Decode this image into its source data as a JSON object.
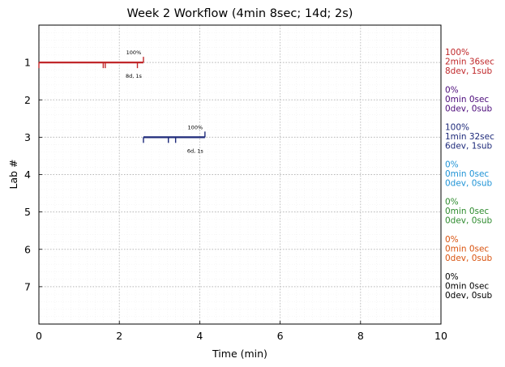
{
  "chart_data": {
    "type": "timeline",
    "title": "Week 2 Workflow (4min 8sec; 14d; 2s)",
    "xlabel": "Time (min)",
    "ylabel": "Lab #",
    "xlim": [
      0,
      10
    ],
    "ylim": [
      8,
      0
    ],
    "xticks": [
      0,
      2,
      4,
      6,
      8,
      10
    ],
    "yticks": [
      1,
      2,
      3,
      4,
      5,
      6,
      7
    ],
    "grid": true,
    "labs": [
      {
        "lab": 1,
        "color": "#c0282a",
        "segments": [
          [
            0,
            2.6
          ]
        ],
        "dev_marks": [
          0,
          1.6,
          1.65,
          2.45
        ],
        "end_mark": 2.6,
        "pct_label": "100%",
        "count_label": "8d, 1s",
        "side_lines": [
          "100%",
          "2min 36sec",
          "8dev, 1sub"
        ]
      },
      {
        "lab": 2,
        "color": "#4b0a7a",
        "segments": [],
        "dev_marks": [],
        "end_mark": null,
        "pct_label": "",
        "count_label": "",
        "side_lines": [
          "0%",
          "0min 0sec",
          "0dev, 0sub"
        ]
      },
      {
        "lab": 3,
        "color": "#1e2a7a",
        "segments": [
          [
            2.6,
            4.13
          ]
        ],
        "dev_marks": [
          2.6,
          3.22,
          3.4
        ],
        "end_mark": 4.13,
        "pct_label": "100%",
        "count_label": "6d, 1s",
        "side_lines": [
          "100%",
          "1min 32sec",
          "6dev, 1sub"
        ]
      },
      {
        "lab": 4,
        "color": "#1f93d6",
        "segments": [],
        "dev_marks": [],
        "end_mark": null,
        "pct_label": "",
        "count_label": "",
        "side_lines": [
          "0%",
          "0min 0sec",
          "0dev, 0sub"
        ]
      },
      {
        "lab": 5,
        "color": "#2e8b2e",
        "segments": [],
        "dev_marks": [],
        "end_mark": null,
        "pct_label": "",
        "count_label": "",
        "side_lines": [
          "0%",
          "0min 0sec",
          "0dev, 0sub"
        ]
      },
      {
        "lab": 6,
        "color": "#d9530f",
        "segments": [],
        "dev_marks": [],
        "end_mark": null,
        "pct_label": "",
        "count_label": "",
        "side_lines": [
          "0%",
          "0min 0sec",
          "0dev, 0sub"
        ]
      },
      {
        "lab": 7,
        "color": "#000000",
        "segments": [],
        "dev_marks": [],
        "end_mark": null,
        "pct_label": "",
        "count_label": "",
        "side_lines": [
          "0%",
          "0min 0sec",
          "0dev, 0sub"
        ]
      }
    ]
  }
}
